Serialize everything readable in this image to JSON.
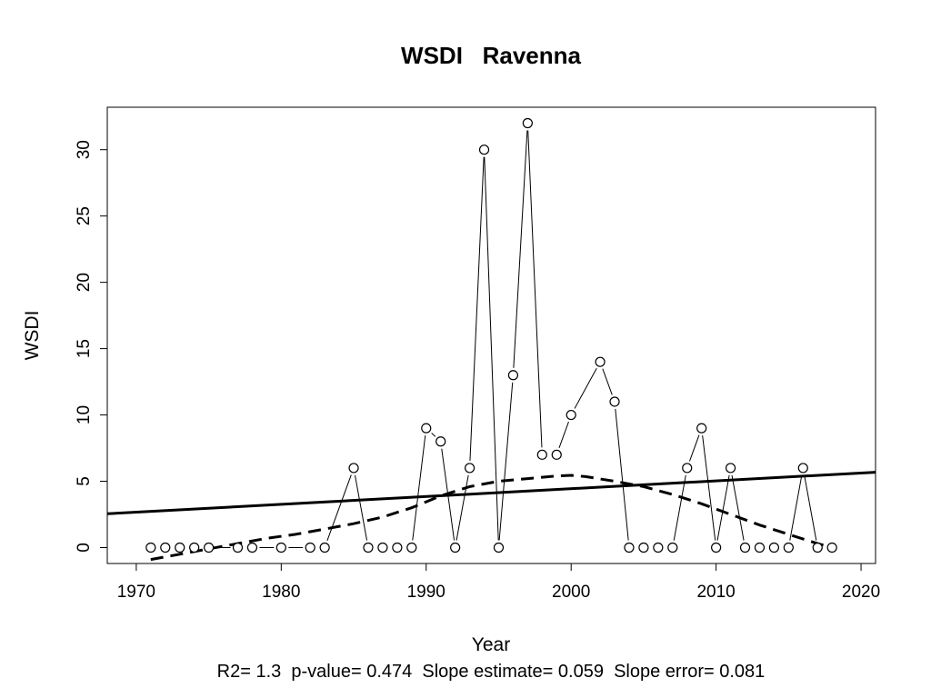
{
  "chart_data": {
    "type": "line",
    "title": "WSDI   Ravenna",
    "xlabel": "Year",
    "ylabel": "WSDI",
    "stats_text": "R2= 1.3  p-value= 0.474  Slope estimate= 0.059  Slope error= 0.081",
    "xlim": [
      1968,
      2021
    ],
    "ylim": [
      -1.2,
      33.2
    ],
    "xticks": [
      "1970",
      "1980",
      "1990",
      "2000",
      "2010",
      "2020"
    ],
    "yticks": [
      "0",
      "5",
      "10",
      "15",
      "20",
      "25",
      "30"
    ],
    "grid": false,
    "series": [
      {
        "x": [
          1971,
          1972,
          1973,
          1974,
          1975,
          1977,
          1978,
          1980,
          1982,
          1983,
          1985,
          1986,
          1987,
          1988,
          1989,
          1990,
          1991,
          1992,
          1993,
          1994,
          1995,
          1996,
          1997,
          1998,
          1999,
          2000,
          2002,
          2003,
          2004,
          2005,
          2006,
          2007,
          2008,
          2009,
          2010,
          2011,
          2012,
          2013,
          2014,
          2015,
          2016,
          2017,
          2018
        ],
        "y": [
          0,
          0,
          0,
          0,
          0,
          0,
          0,
          0,
          0,
          0,
          6,
          0,
          0,
          0,
          0,
          9,
          8,
          0,
          6,
          30,
          0,
          13,
          32,
          7,
          7,
          10,
          14,
          11,
          0,
          0,
          0,
          0,
          6,
          9,
          0,
          6,
          0,
          0,
          0,
          0,
          6,
          0,
          0
        ]
      }
    ],
    "trend_line": {
      "x": [
        1968,
        2021
      ],
      "y": [
        2.55,
        5.68
      ]
    },
    "smooth_line": {
      "x": [
        1971,
        1973,
        1975,
        1977,
        1979,
        1981,
        1983,
        1985,
        1987,
        1989,
        1991,
        1993,
        1995,
        1997,
        1999,
        2000,
        2001,
        2003,
        2005,
        2007,
        2009,
        2011,
        2013,
        2015,
        2017,
        2018
      ],
      "y": [
        -0.9,
        -0.5,
        -0.1,
        0.3,
        0.7,
        1.0,
        1.4,
        1.8,
        2.3,
        3.0,
        3.9,
        4.6,
        5.0,
        5.2,
        5.4,
        5.45,
        5.35,
        5.0,
        4.6,
        4.0,
        3.3,
        2.5,
        1.7,
        1.0,
        0.3,
        0.0
      ]
    }
  }
}
